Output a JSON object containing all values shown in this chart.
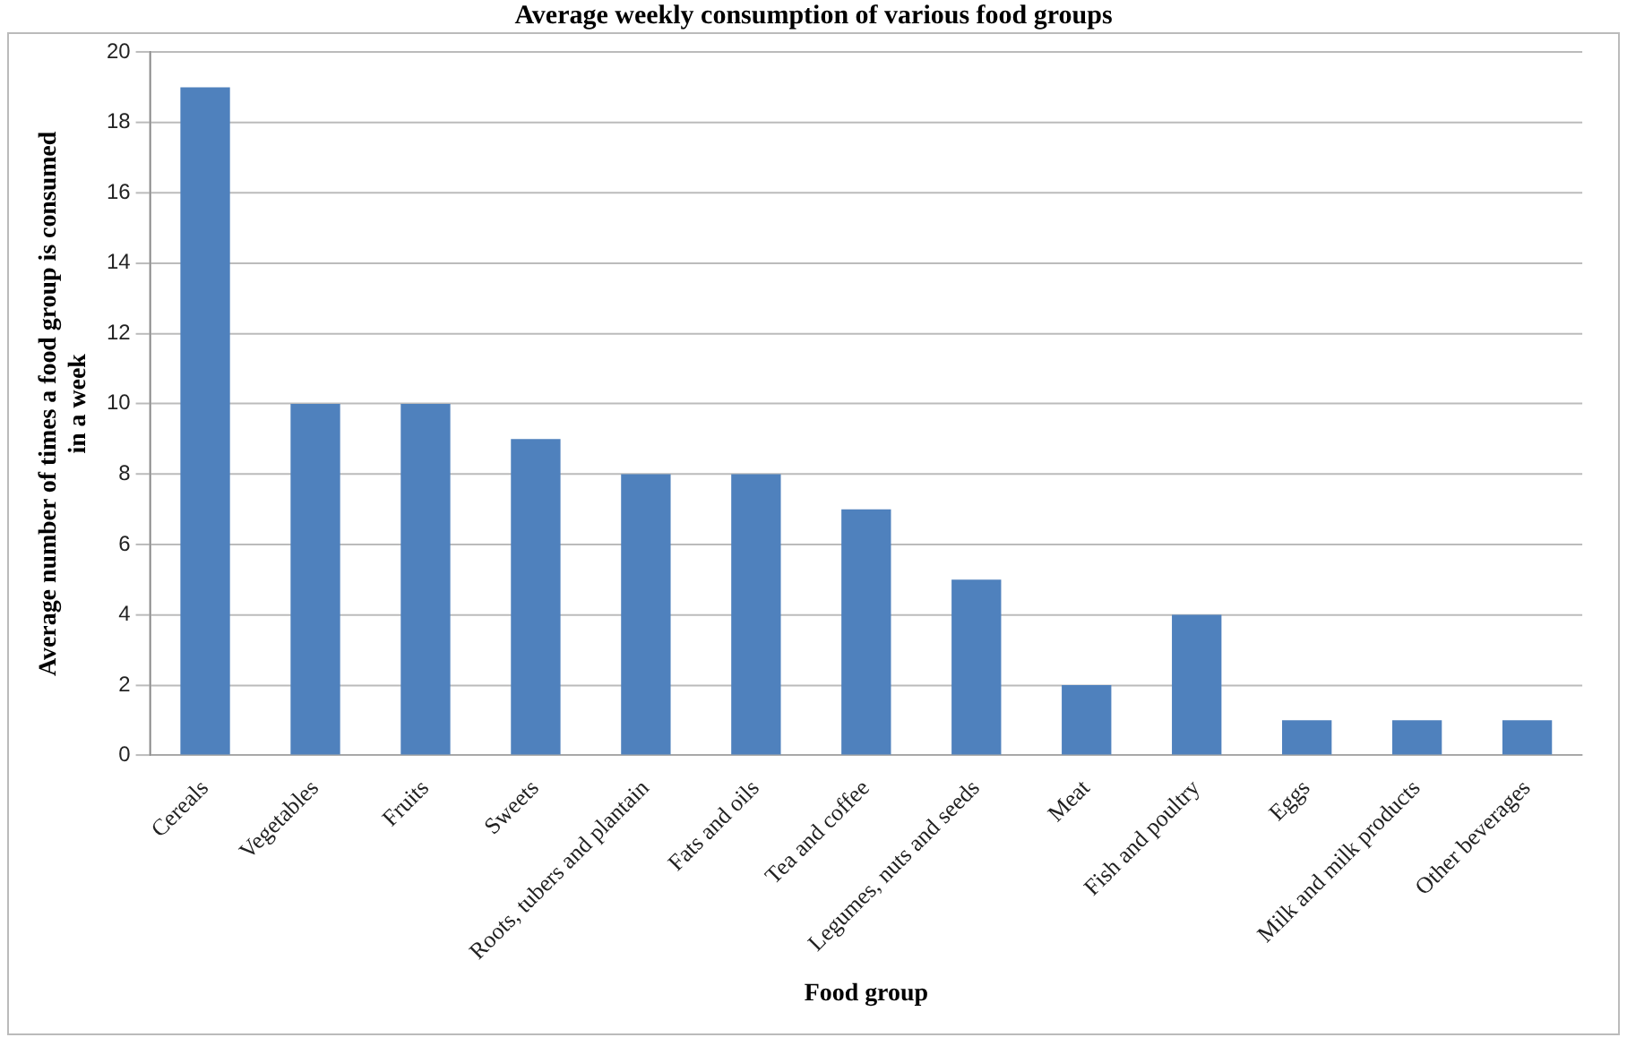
{
  "chart_data": {
    "type": "bar",
    "title": "Average weekly consumption of various food groups",
    "xlabel": "Food group",
    "ylabel": "Average number of times a food group is consumed in a week",
    "categories": [
      "Cereals",
      "Vegetables",
      "Fruits",
      "Sweets",
      "Roots, tubers and plantain",
      "Fats and oils",
      "Tea and coffee",
      "Legumes, nuts and seeds",
      "Meat",
      "Fish and poultry",
      "Eggs",
      "Milk and milk products",
      "Other beverages"
    ],
    "values": [
      19,
      10,
      10,
      9,
      8,
      8,
      7,
      5,
      2,
      4,
      1,
      1,
      1
    ],
    "color": "#4f81bd",
    "ylim": [
      0,
      20
    ],
    "yticks": [
      0,
      2,
      4,
      6,
      8,
      10,
      12,
      14,
      16,
      18,
      20
    ],
    "grid": "y",
    "legend": false
  }
}
